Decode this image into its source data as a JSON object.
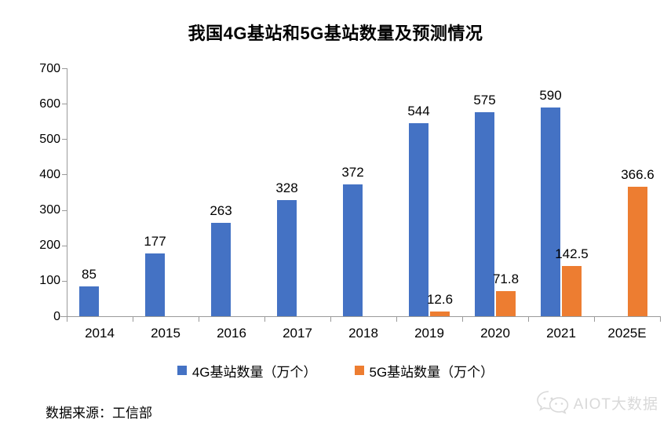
{
  "title": "我国4G基站和5G基站数量及预测情况",
  "chart_data": {
    "type": "bar",
    "categories": [
      "2014",
      "2015",
      "2016",
      "2017",
      "2018",
      "2019",
      "2020",
      "2021",
      "2025E"
    ],
    "series": [
      {
        "name": "4G基站数量（万个）",
        "color": "#4472C4",
        "values": [
          85,
          177,
          263,
          328,
          372,
          544,
          575,
          590,
          null
        ]
      },
      {
        "name": "5G基站数量（万个）",
        "color": "#ED7D31",
        "values": [
          null,
          null,
          null,
          null,
          null,
          12.6,
          71.8,
          142.5,
          366.6
        ]
      }
    ],
    "ylim": [
      0,
      700
    ],
    "yticks": [
      0,
      100,
      200,
      300,
      400,
      500,
      600,
      700
    ],
    "grid": false,
    "legend_position": "bottom",
    "value_labels": true,
    "xlabel": "",
    "ylabel": ""
  },
  "source_note": "数据来源：工信部",
  "watermark": {
    "text": "AIOT大数据",
    "icon": "wechat-icon",
    "color": "#d9d9d9"
  },
  "colors": {
    "bar_4g": "#4472C4",
    "bar_5g": "#ED7D31",
    "axis": "#9a9a9a",
    "text": "#000000"
  }
}
